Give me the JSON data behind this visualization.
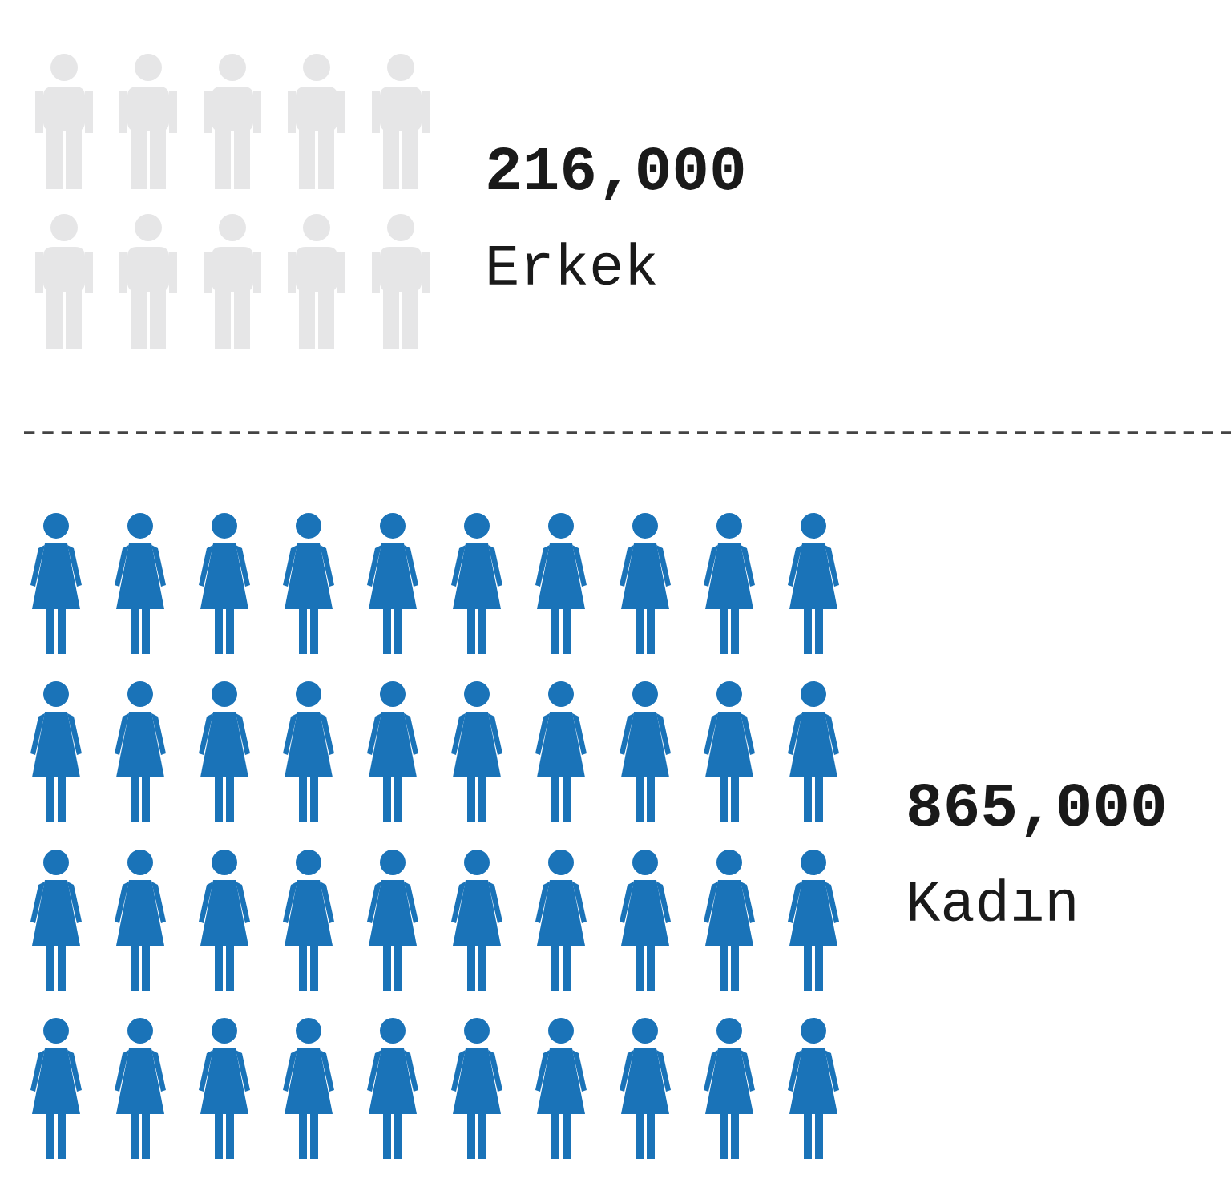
{
  "chart_data": {
    "type": "other",
    "categories": [
      "Erkek",
      "Kadın"
    ],
    "values": [
      216000,
      865000
    ],
    "colors": [
      "#e6e6e7",
      "#1a73b8"
    ],
    "value_labels": [
      "216,000",
      "865,000"
    ]
  }
}
